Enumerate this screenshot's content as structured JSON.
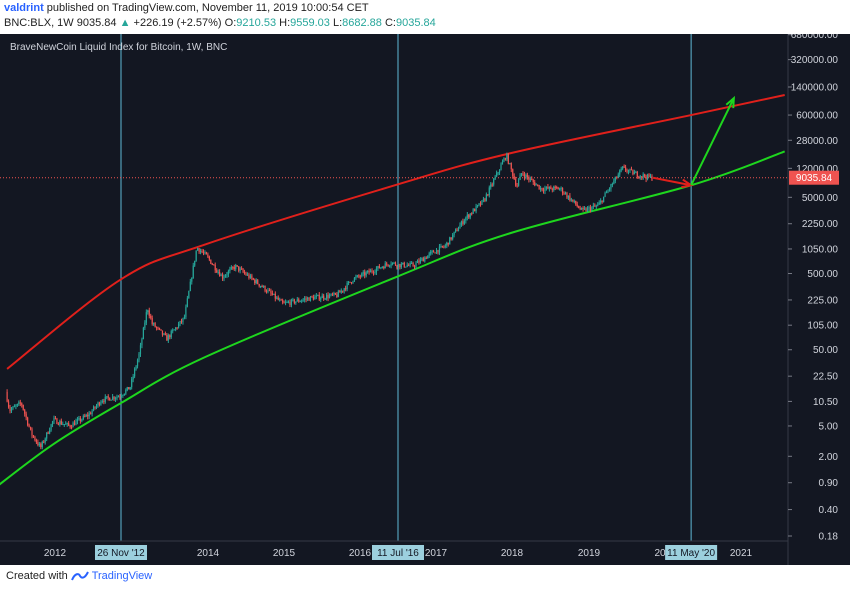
{
  "header": {
    "author": "valdrint",
    "published": "published on TradingView.com, November 11, 2019 10:00:54 CET",
    "symbol": "BNC:BLX, 1W",
    "last": "9035.84",
    "change": "+226.19 (+2.57%)",
    "open_label": "O:",
    "open": "9210.53",
    "high_label": "H:",
    "high": "9559.03",
    "low_label": "L:",
    "low": "8682.88",
    "close_label": "C:",
    "close": "9035.84"
  },
  "footer": {
    "created_with": "Created with",
    "brand": "TradingView"
  },
  "colors": {
    "background": "#131722",
    "up": "#26a69a",
    "down": "#ef5350",
    "upper_curve": "#e0201b",
    "lower_curve": "#1ed61e",
    "marker_line": "#5fb8d6",
    "price_label": "#ef5350",
    "date_tag": "#9cd0de"
  },
  "chart_data": {
    "type": "candlestick",
    "title": "BraveNewCoin Liquid Index for Bitcoin, 1W, BNC",
    "y_scale": "log",
    "y_ticks": [
      "680000.00",
      "320000.00",
      "140000.00",
      "60000.00",
      "28000.00",
      "12000.00",
      "5000.00",
      "2250.00",
      "1050.00",
      "500.00",
      "225.00",
      "105.00",
      "50.00",
      "22.50",
      "10.50",
      "5.00",
      "2.00",
      "0.90",
      "0.40",
      "0.18"
    ],
    "x_ticks": [
      "2012",
      "2014",
      "2015",
      "2016",
      "2017",
      "2018",
      "2019",
      "20",
      "2021"
    ],
    "current_price": "9035.84",
    "vertical_markers": [
      {
        "date": "2012-11-26",
        "label": "26 Nov '12"
      },
      {
        "date": "2016-07-11",
        "label": "11 Jul '16"
      },
      {
        "date": "2020-05-11",
        "label": "11 May '20"
      }
    ],
    "price_path": [
      [
        "2011-06-01",
        14
      ],
      [
        "2011-06-20",
        8
      ],
      [
        "2011-08-15",
        10
      ],
      [
        "2011-10-01",
        4
      ],
      [
        "2011-11-15",
        2.6
      ],
      [
        "2012-01-15",
        6
      ],
      [
        "2012-04-01",
        5
      ],
      [
        "2012-07-01",
        7
      ],
      [
        "2012-09-01",
        11
      ],
      [
        "2012-11-26",
        12.5
      ],
      [
        "2013-01-15",
        16
      ],
      [
        "2013-03-01",
        45
      ],
      [
        "2013-04-08",
        180
      ],
      [
        "2013-05-01",
        110
      ],
      [
        "2013-07-10",
        70
      ],
      [
        "2013-10-01",
        130
      ],
      [
        "2013-11-30",
        1100
      ],
      [
        "2014-01-15",
        850
      ],
      [
        "2014-04-01",
        450
      ],
      [
        "2014-06-01",
        620
      ],
      [
        "2014-10-01",
        350
      ],
      [
        "2015-01-15",
        200
      ],
      [
        "2015-06-01",
        240
      ],
      [
        "2015-10-01",
        260
      ],
      [
        "2015-12-15",
        420
      ],
      [
        "2016-06-15",
        700
      ],
      [
        "2016-07-11",
        650
      ],
      [
        "2016-10-01",
        640
      ],
      [
        "2016-12-31",
        950
      ],
      [
        "2017-03-01",
        1150
      ],
      [
        "2017-06-01",
        2600
      ],
      [
        "2017-09-01",
        4500
      ],
      [
        "2017-12-17",
        18000
      ],
      [
        "2018-02-05",
        7000
      ],
      [
        "2018-03-01",
        10500
      ],
      [
        "2018-06-01",
        6500
      ],
      [
        "2018-09-01",
        6500
      ],
      [
        "2018-12-15",
        3300
      ],
      [
        "2019-03-01",
        3900
      ],
      [
        "2019-06-25",
        12000
      ],
      [
        "2019-09-01",
        10000
      ],
      [
        "2019-11-11",
        9035.84
      ]
    ],
    "projection_red": [
      [
        "2019-11-11",
        9035.84
      ],
      [
        "2020-05-11",
        7200
      ]
    ],
    "projection_green": [
      [
        "2020-05-11",
        7200
      ],
      [
        "2020-12-01",
        100000
      ]
    ],
    "upper_curve": [
      [
        "2011-06-01",
        28
      ],
      [
        "2012-11-26",
        420
      ],
      [
        "2014-01-01",
        1200
      ],
      [
        "2016-07-11",
        7400
      ],
      [
        "2018-01-01",
        19000
      ],
      [
        "2020-05-11",
        60000
      ],
      [
        "2021-08-01",
        110000
      ]
    ],
    "lower_curve": [
      [
        "2011-03-01",
        0.65
      ],
      [
        "2012-01-01",
        2.8
      ],
      [
        "2012-11-26",
        10
      ],
      [
        "2014-01-01",
        40
      ],
      [
        "2016-07-11",
        460
      ],
      [
        "2018-01-01",
        1700
      ],
      [
        "2020-05-11",
        7200
      ],
      [
        "2021-08-01",
        20000
      ]
    ]
  }
}
